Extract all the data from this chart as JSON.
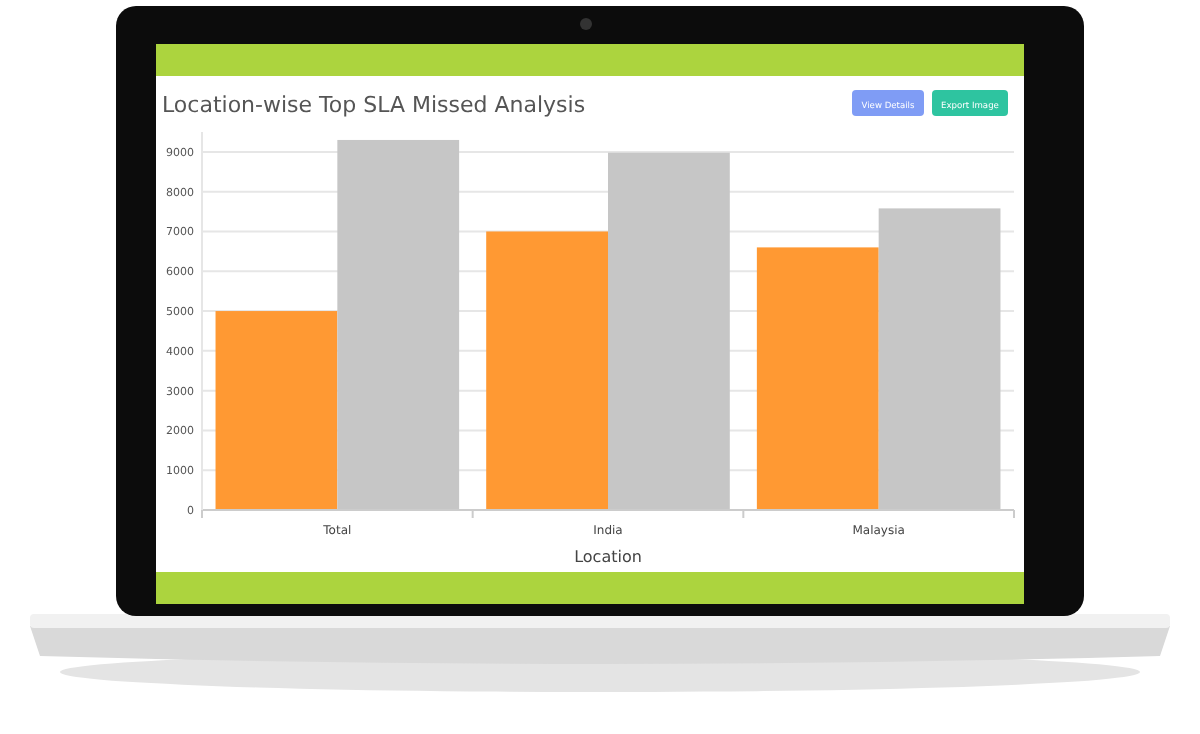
{
  "chart_data": {
    "type": "bar",
    "title": "Location-wise Top SLA Missed Analysis",
    "xlabel": "Location",
    "categories": [
      "Total",
      "India",
      "Malaysia"
    ],
    "series": [
      {
        "color": "#ff9933",
        "values": [
          5000,
          7000,
          6600
        ]
      },
      {
        "color": "#c6c6c6",
        "values": [
          9300,
          8980,
          7580
        ]
      }
    ],
    "ylim": [
      0,
      9500
    ],
    "yticks": [
      0,
      1000,
      2000,
      3000,
      4000,
      5000,
      6000,
      7000,
      8000,
      9000
    ],
    "grid": "y",
    "annotations": [
      "Export Image",
      "View Details"
    ]
  }
}
